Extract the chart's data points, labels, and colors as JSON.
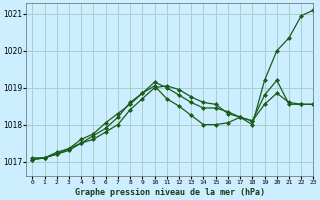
{
  "title": "Graphe pression niveau de la mer (hPa)",
  "background_color": "#cceeff",
  "grid_color": "#aacccc",
  "line_color": "#1a5c1a",
  "xlim": [
    -0.5,
    23
  ],
  "ylim": [
    1016.6,
    1021.3
  ],
  "yticks": [
    1017,
    1018,
    1019,
    1020,
    1021
  ],
  "xtick_labels": [
    "0",
    "1",
    "2",
    "3",
    "4",
    "5",
    "6",
    "7",
    "8",
    "9",
    "10",
    "11",
    "12",
    "13",
    "14",
    "15",
    "16",
    "17",
    "18",
    "19",
    "20",
    "21",
    "22",
    "23"
  ],
  "series": [
    {
      "x": [
        0,
        1,
        2,
        3,
        4,
        5,
        6,
        7,
        8,
        9,
        10,
        11,
        12,
        13,
        14,
        15,
        16,
        17,
        18,
        19,
        20,
        21,
        22,
        23
      ],
      "y": [
        1017.1,
        1017.1,
        1017.2,
        1017.3,
        1017.5,
        1017.6,
        1017.8,
        1018.0,
        1018.4,
        1018.7,
        1019.0,
        1019.05,
        1018.95,
        1018.75,
        1018.6,
        1018.55,
        1018.3,
        1018.2,
        1018.0,
        1019.2,
        1020.0,
        1020.35,
        1020.95,
        1021.1
      ]
    },
    {
      "x": [
        0,
        1,
        2,
        3,
        4,
        5,
        6,
        7,
        8,
        9,
        10,
        11,
        12,
        13,
        14,
        15,
        16,
        17,
        18,
        19,
        20,
        21,
        22,
        23
      ],
      "y": [
        1017.05,
        1017.1,
        1017.2,
        1017.35,
        1017.5,
        1017.7,
        1017.9,
        1018.2,
        1018.6,
        1018.85,
        1019.15,
        1019.0,
        1018.8,
        1018.6,
        1018.45,
        1018.45,
        1018.35,
        1018.2,
        1018.1,
        1018.55,
        1018.85,
        1018.6,
        1018.55,
        1018.55
      ]
    },
    {
      "x": [
        0,
        1,
        2,
        3,
        4,
        5,
        6,
        7,
        8,
        9,
        10,
        11,
        12,
        13,
        14,
        15,
        16,
        17,
        18,
        19,
        20,
        21,
        22,
        23
      ],
      "y": [
        1017.05,
        1017.1,
        1017.25,
        1017.35,
        1017.6,
        1017.75,
        1018.05,
        1018.3,
        1018.55,
        1018.85,
        1019.05,
        1018.7,
        1018.5,
        1018.25,
        1018.0,
        1018.0,
        1018.05,
        1018.2,
        1018.1,
        1018.8,
        1019.2,
        1018.55,
        1018.55,
        1018.55
      ]
    }
  ]
}
